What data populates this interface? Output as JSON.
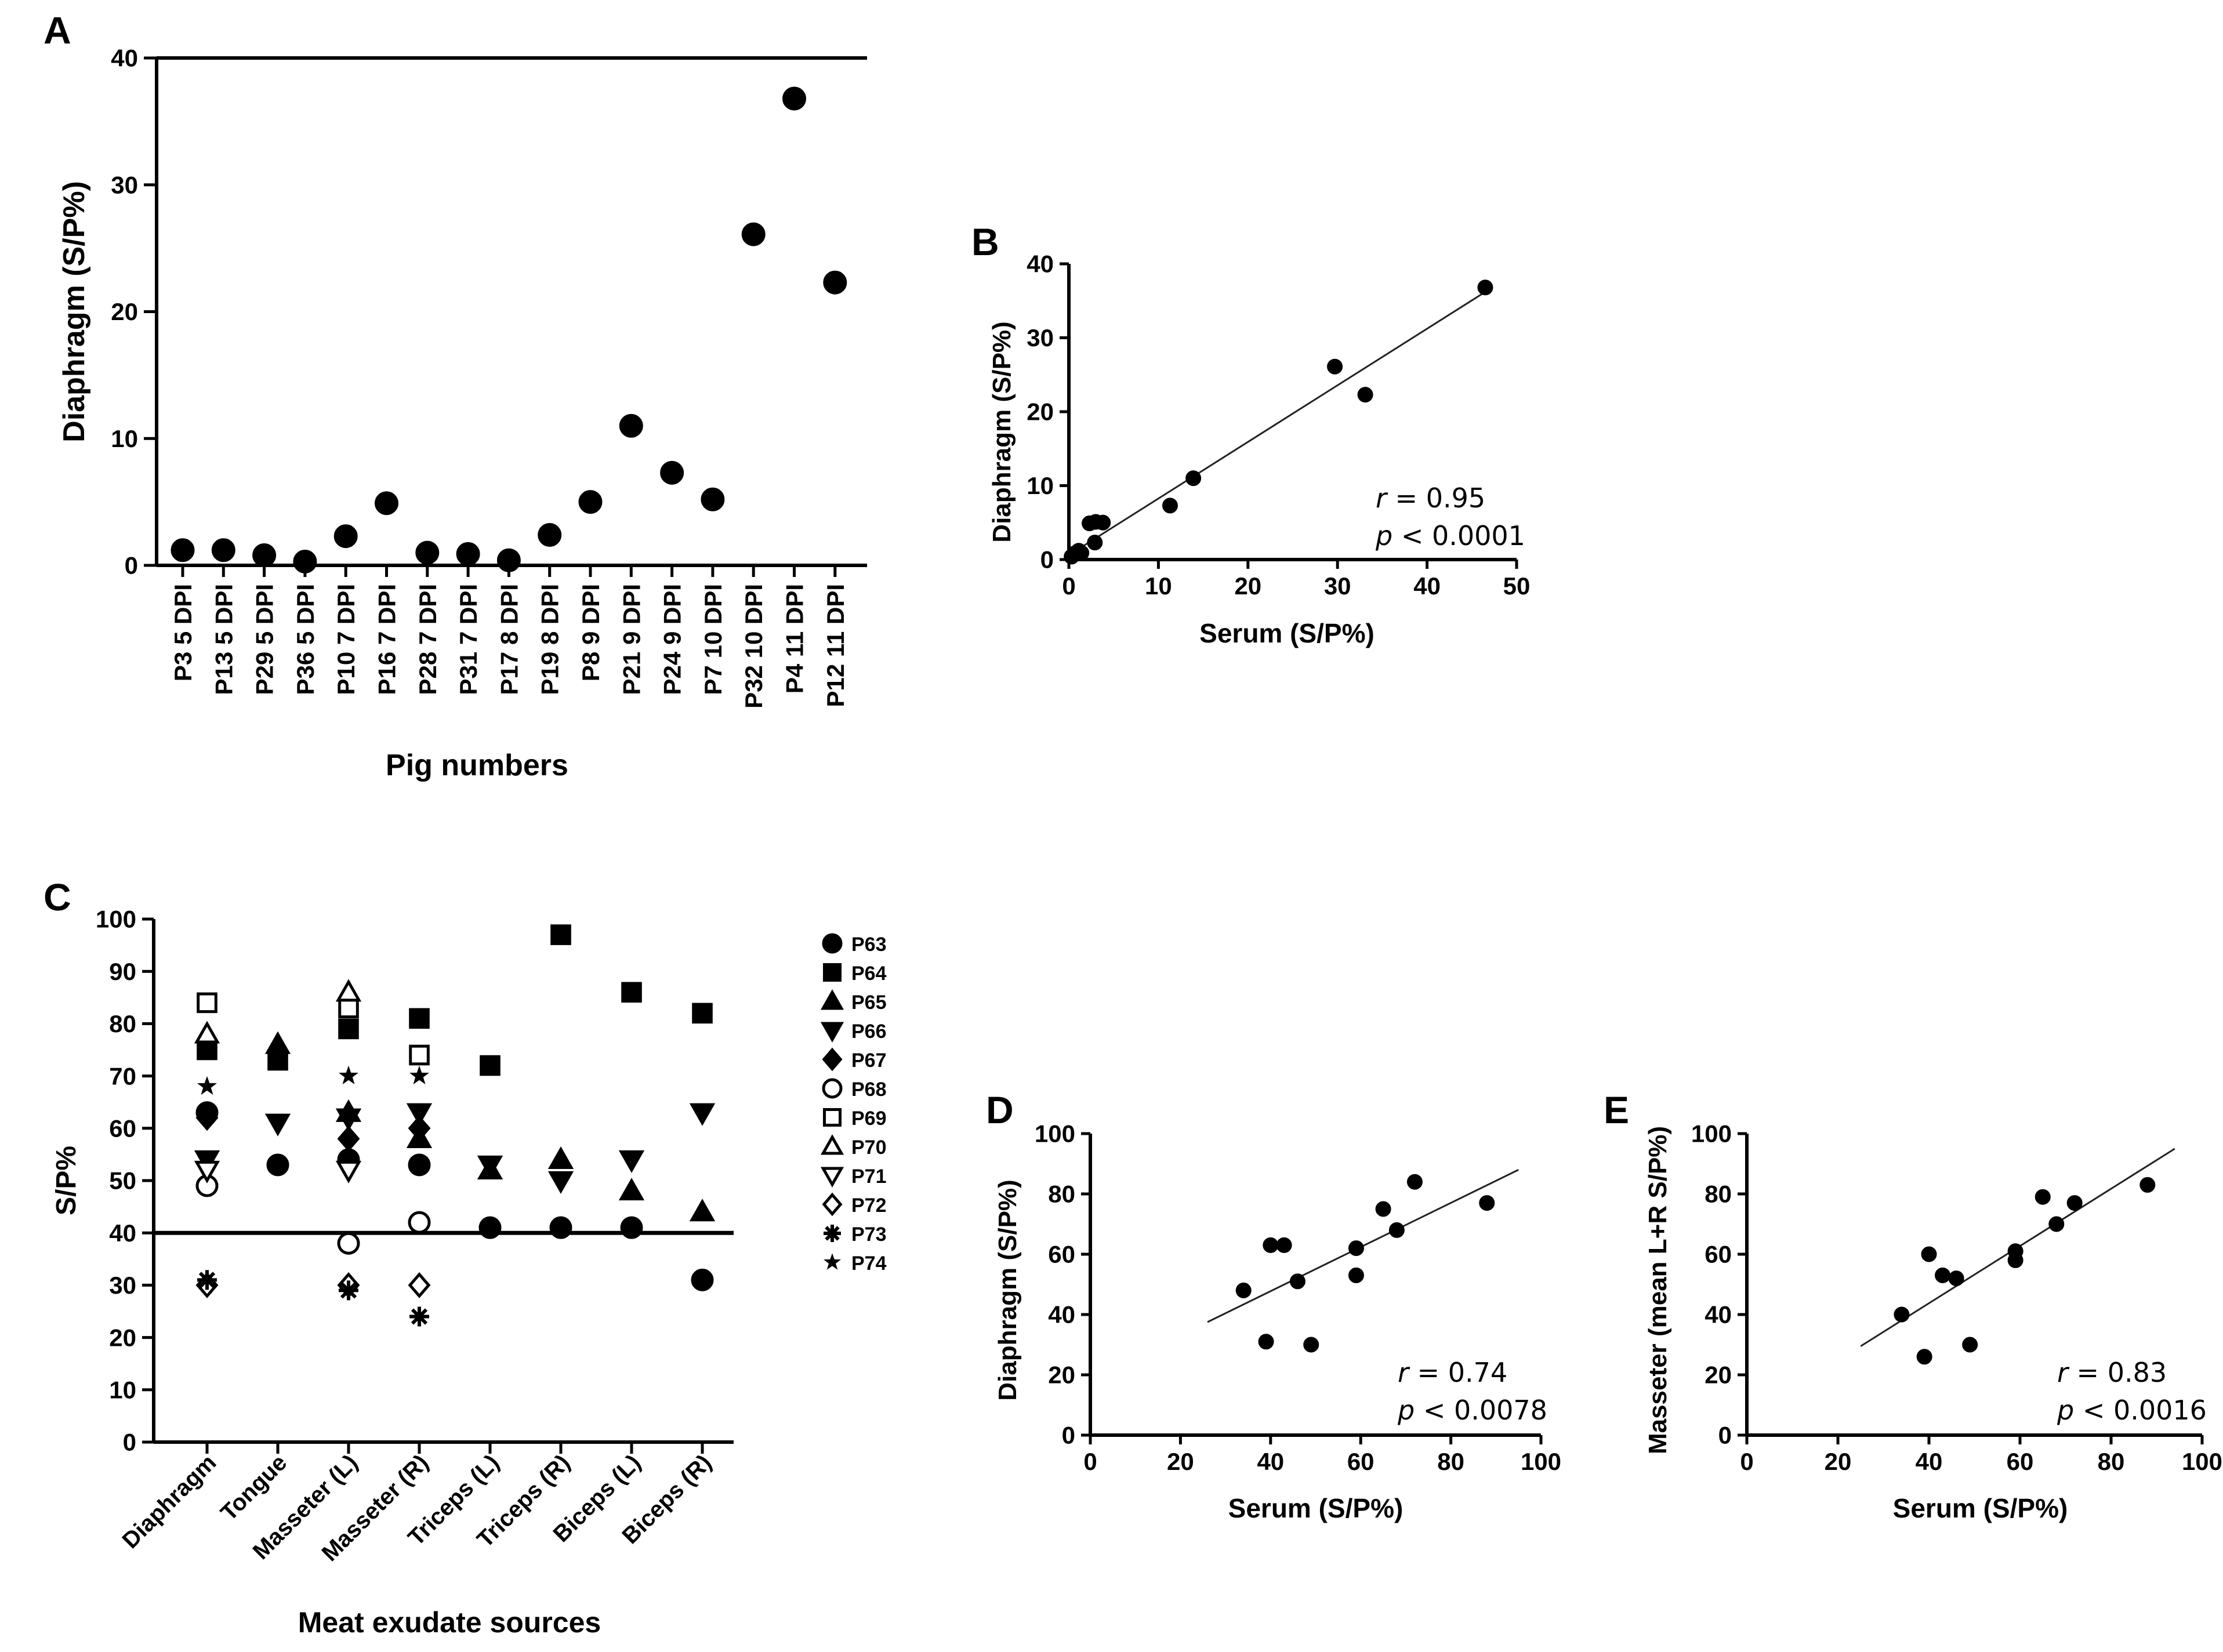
{
  "chart_data": [
    {
      "panel": "A",
      "type": "scatter",
      "ylabel": "Diaphragm (S/P%)",
      "xlabel": "Pig numbers",
      "ylim": [
        0,
        40
      ],
      "yticks": [
        0,
        10,
        20,
        30,
        40
      ],
      "categories": [
        "P3 5 DPI",
        "P13 5 DPI",
        "P29 5 DPI",
        "P36 5 DPI",
        "P10 7 DPI",
        "P16 7 DPI",
        "P28 7 DPI",
        "P31 7 DPI",
        "P17 8 DPI",
        "P19 8 DPI",
        "P8 9 DPI",
        "P21 9 DPI",
        "P24 9 DPI",
        "P7 10 DPI",
        "P32 10 DPI",
        "P4 11 DPI",
        "P12 11 DPI"
      ],
      "values": [
        1.2,
        1.2,
        0.8,
        0.3,
        2.3,
        4.9,
        1.0,
        0.9,
        0.4,
        2.4,
        5.0,
        11.0,
        7.3,
        5.2,
        26.1,
        36.8,
        22.3
      ],
      "reference_line": 40
    },
    {
      "panel": "B",
      "type": "scatter",
      "xlabel": "Serum (S/P%)",
      "ylabel": "Diaphragm (S/P%)",
      "xlim": [
        0,
        50
      ],
      "ylim": [
        0,
        40
      ],
      "xticks": [
        0,
        10,
        20,
        30,
        40,
        50
      ],
      "yticks": [
        0,
        10,
        20,
        30,
        40
      ],
      "x": [
        0.3,
        0.6,
        0.9,
        1.1,
        1.4,
        2.3,
        2.9,
        3.0,
        3.8,
        11.3,
        13.9,
        29.7,
        33.1,
        46.5
      ],
      "y": [
        0.4,
        0.8,
        1.0,
        1.2,
        0.9,
        4.9,
        2.3,
        5.1,
        5.0,
        7.3,
        11.0,
        26.1,
        22.3,
        36.8
      ],
      "fit_line": {
        "x": [
          0,
          46.5
        ],
        "y": [
          0.6,
          36.2
        ]
      },
      "r_label": "r",
      "r_text": " = 0.95",
      "p_label": "p",
      "p_text": " < 0.0001"
    },
    {
      "panel": "C",
      "type": "scatter",
      "ylabel": "S/P%",
      "xlabel": "Meat exudate sources",
      "ylim": [
        0,
        100
      ],
      "yticks": [
        0,
        10,
        20,
        30,
        40,
        50,
        60,
        70,
        80,
        90,
        100
      ],
      "cutoff": 40,
      "categories": [
        "Diaphragm",
        "Tongue",
        "Masseter (L)",
        "Masseter (R)",
        "Triceps (L)",
        "Triceps (R)",
        "Biceps (L)",
        "Biceps (R)"
      ],
      "series": [
        {
          "name": "P63",
          "marker": "circle-filled",
          "values": [
            63,
            53,
            54,
            53,
            41,
            41,
            41,
            31
          ]
        },
        {
          "name": "P64",
          "marker": "square-filled",
          "values": [
            75,
            73,
            79,
            81,
            72,
            97,
            86,
            82
          ]
        },
        {
          "name": "P65",
          "marker": "triangle-up-filled",
          "values": [
            null,
            76,
            63,
            58,
            52,
            54,
            48,
            44
          ]
        },
        {
          "name": "P66",
          "marker": "triangle-down-filled",
          "values": [
            54,
            61,
            62,
            63,
            53,
            50,
            54,
            63
          ]
        },
        {
          "name": "P67",
          "marker": "diamond-filled",
          "values": [
            62,
            null,
            58,
            60,
            null,
            null,
            null,
            null
          ]
        },
        {
          "name": "P68",
          "marker": "circle-open",
          "values": [
            49,
            null,
            38,
            42,
            null,
            null,
            null,
            null
          ]
        },
        {
          "name": "P69",
          "marker": "square-open",
          "values": [
            84,
            null,
            83,
            74,
            null,
            null,
            null,
            null
          ]
        },
        {
          "name": "P70",
          "marker": "triangle-up-open",
          "values": [
            78,
            null,
            86,
            null,
            null,
            null,
            null,
            null
          ]
        },
        {
          "name": "P71",
          "marker": "triangle-down-open",
          "values": [
            52,
            null,
            52,
            null,
            null,
            null,
            null,
            null
          ]
        },
        {
          "name": "P72",
          "marker": "diamond-open",
          "values": [
            30,
            null,
            30,
            30,
            null,
            null,
            null,
            null
          ]
        },
        {
          "name": "P73",
          "marker": "asterisk",
          "values": [
            31,
            null,
            29,
            24,
            null,
            null,
            null,
            null
          ]
        },
        {
          "name": "P74",
          "marker": "star-filled",
          "values": [
            68,
            null,
            70,
            70,
            null,
            null,
            null,
            null
          ]
        }
      ]
    },
    {
      "panel": "D",
      "type": "scatter",
      "xlabel": "Serum (S/P%)",
      "ylabel": "Diaphragm (S/P%)",
      "xlim": [
        0,
        100
      ],
      "ylim": [
        0,
        100
      ],
      "xticks": [
        0,
        20,
        40,
        60,
        80,
        100
      ],
      "yticks": [
        0,
        20,
        40,
        60,
        80,
        100
      ],
      "x": [
        34,
        39,
        40,
        43,
        46,
        49,
        59,
        59,
        65,
        68,
        72,
        88
      ],
      "y": [
        48,
        31,
        63,
        63,
        51,
        30,
        53,
        62,
        75,
        68,
        84,
        77
      ],
      "fit_line": {
        "x": [
          26,
          95
        ],
        "y": [
          37.5,
          88
        ]
      },
      "r_label": "r",
      "r_text": " = 0.74",
      "p_label": "p",
      "p_text": " < 0.0078"
    },
    {
      "panel": "E",
      "type": "scatter",
      "xlabel": "Serum (S/P%)",
      "ylabel": "Masseter (mean L+R S/P%)",
      "xlim": [
        0,
        100
      ],
      "ylim": [
        0,
        100
      ],
      "xticks": [
        0,
        20,
        40,
        60,
        80,
        100
      ],
      "yticks": [
        0,
        20,
        40,
        60,
        80,
        100
      ],
      "x": [
        34,
        39,
        40,
        43,
        46,
        49,
        59,
        59,
        65,
        68,
        72,
        88
      ],
      "y": [
        40,
        26,
        60,
        53,
        52,
        30,
        58,
        61,
        79,
        70,
        77,
        83
      ],
      "fit_line": {
        "x": [
          25,
          94
        ],
        "y": [
          29.5,
          95
        ]
      },
      "r_label": "r",
      "r_text": " = 0.83",
      "p_label": "p",
      "p_text": " < 0.0016"
    }
  ]
}
